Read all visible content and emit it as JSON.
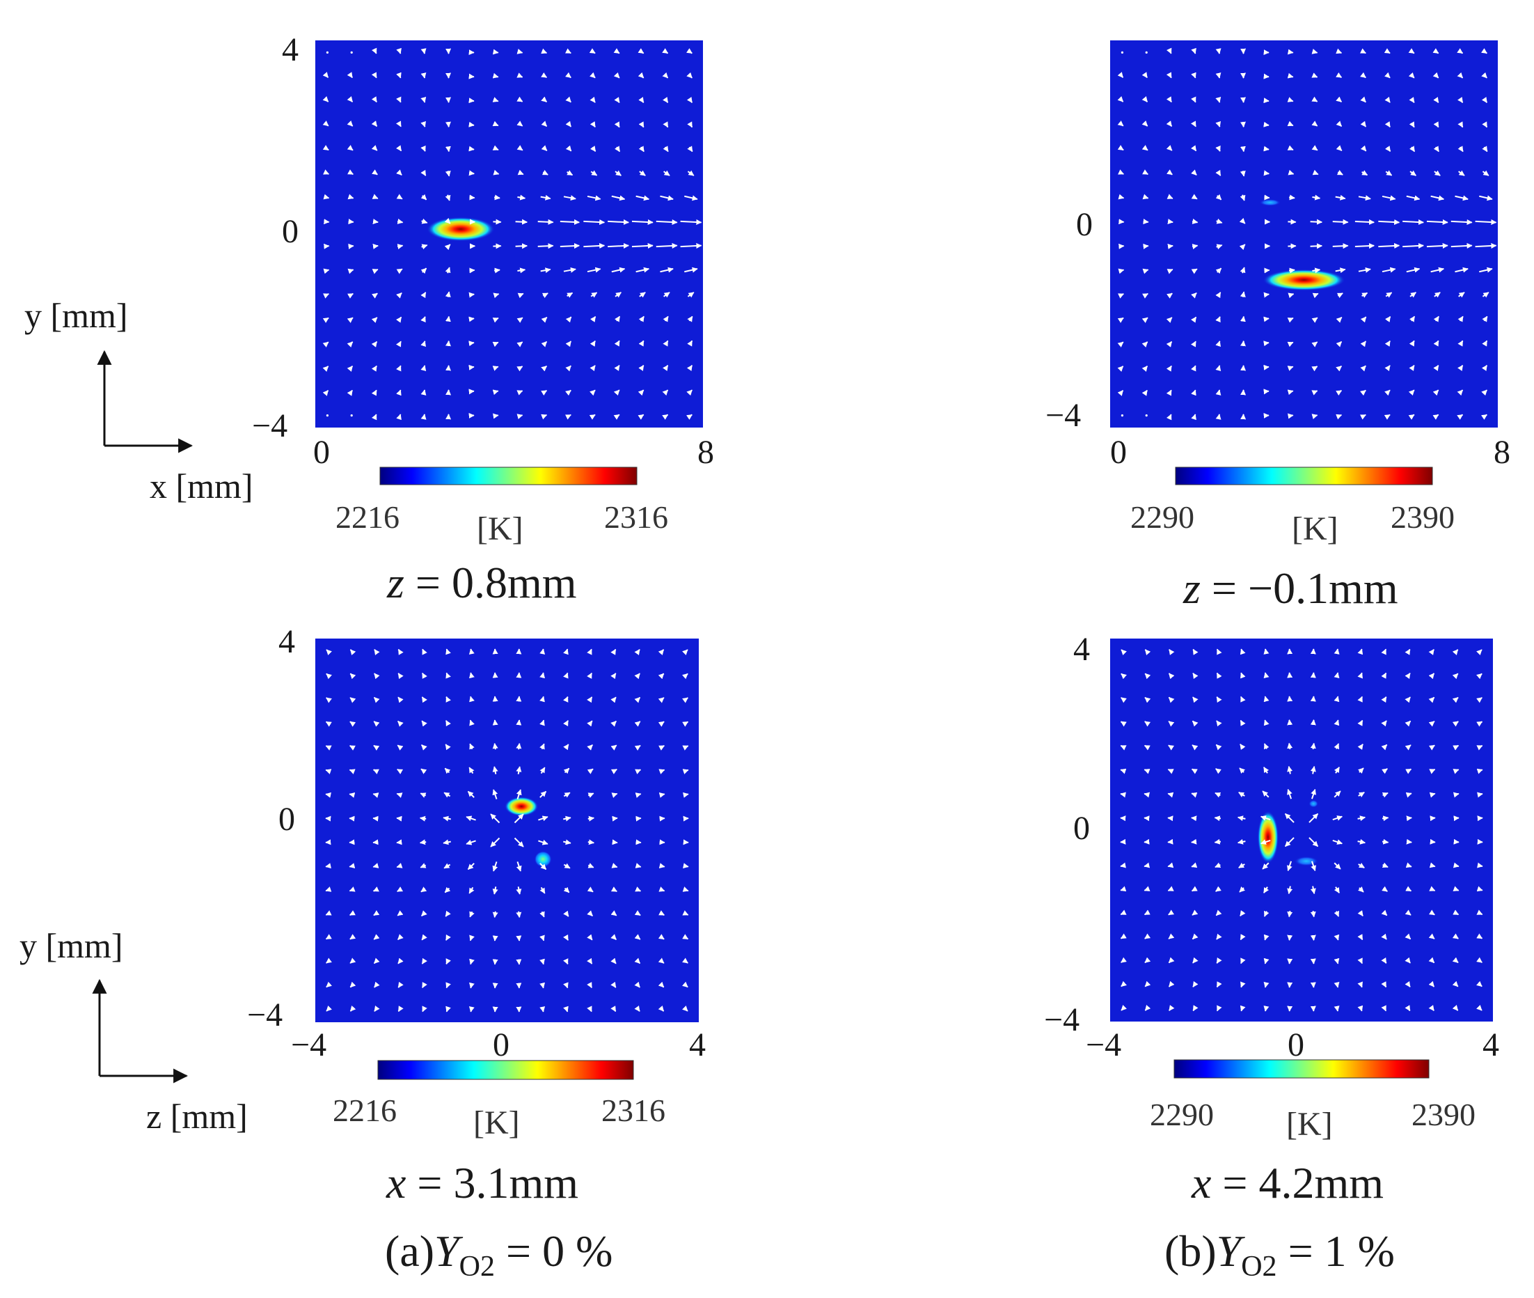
{
  "figure_caption": {
    "a": {
      "prefix": "(a)",
      "symbol": "Y",
      "subscript": "O2",
      "rest": " = 0 %"
    },
    "b": {
      "prefix": "(b)",
      "symbol": "Y",
      "subscript": "O2",
      "rest": " = 1 %"
    }
  },
  "axis_indicators": {
    "top": {
      "vertical": "y [mm]",
      "horizontal": "x [mm]"
    },
    "bottom": {
      "vertical": "y [mm]",
      "horizontal": "z [mm]"
    }
  },
  "colors": {
    "field_background": "#0f1cd6",
    "arrow": "#ffffff",
    "axis": "#111111"
  },
  "chart_data": [
    {
      "id": "panel-a-top",
      "type": "heatmap",
      "plane": "x-y",
      "title": "z = 0.8mm",
      "title_parts": {
        "var": "z",
        "rest": " = 0.8mm"
      },
      "xlabel": "x [mm]",
      "ylabel": "y [mm]",
      "xlim": [
        0,
        8
      ],
      "ylim": [
        -4,
        4
      ],
      "xticks": [
        "0",
        "8"
      ],
      "yticks": [
        "4",
        "0",
        "−4"
      ],
      "colorbar": {
        "min": 2216,
        "max": 2316,
        "min_label": "2216",
        "max_label": "2316",
        "unit": "[K]",
        "colormap": "jet"
      },
      "hot_spots": [
        {
          "center": [
            3.0,
            0.1
          ],
          "radius": [
            0.7,
            0.25
          ],
          "peak_fraction": 1.0
        }
      ],
      "flow_field": {
        "pattern": "jet",
        "source": [
          3.0,
          0.0
        ],
        "direction": "+x",
        "grid": [
          16,
          16
        ]
      }
    },
    {
      "id": "panel-b-top",
      "type": "heatmap",
      "plane": "x-y",
      "title": "z = −0.1mm",
      "title_parts": {
        "var": "z",
        "rest": " = −0.1mm"
      },
      "xlabel": "x [mm]",
      "ylabel": "y [mm]",
      "xlim": [
        0,
        8
      ],
      "ylim": [
        -4,
        4
      ],
      "xticks": [
        "0",
        "8"
      ],
      "yticks": [
        "0",
        "−4"
      ],
      "colorbar": {
        "min": 2290,
        "max": 2390,
        "min_label": "2290",
        "max_label": "2390",
        "unit": "[K]",
        "colormap": "jet"
      },
      "hot_spots": [
        {
          "center": [
            4.0,
            -0.95
          ],
          "radius": [
            0.85,
            0.22
          ],
          "peak_fraction": 1.0
        },
        {
          "center": [
            3.3,
            0.65
          ],
          "radius": [
            0.22,
            0.07
          ],
          "peak_fraction": 0.3
        }
      ],
      "flow_field": {
        "pattern": "jet",
        "source": [
          3.0,
          0.0
        ],
        "direction": "+x",
        "grid": [
          16,
          16
        ]
      }
    },
    {
      "id": "panel-a-bottom",
      "type": "heatmap",
      "plane": "z-y",
      "title": "x = 3.1mm",
      "title_parts": {
        "var": "x",
        "rest": " = 3.1mm"
      },
      "xlabel": "z [mm]",
      "ylabel": "y [mm]",
      "xlim": [
        -4,
        4
      ],
      "ylim": [
        -4,
        4
      ],
      "xticks": [
        "−4",
        "0",
        "4"
      ],
      "yticks": [
        "4",
        "0",
        "−4"
      ],
      "colorbar": {
        "min": 2216,
        "max": 2316,
        "min_label": "2216",
        "max_label": "2316",
        "unit": "[K]",
        "colormap": "jet"
      },
      "hot_spots": [
        {
          "center": [
            0.3,
            0.5
          ],
          "radius": [
            0.35,
            0.2
          ],
          "peak_fraction": 0.95
        },
        {
          "center": [
            0.75,
            -0.6
          ],
          "radius": [
            0.18,
            0.17
          ],
          "peak_fraction": 0.4
        }
      ],
      "flow_field": {
        "pattern": "radial",
        "source": [
          0.0,
          0.0
        ],
        "direction": "outward",
        "grid": [
          16,
          16
        ]
      }
    },
    {
      "id": "panel-b-bottom",
      "type": "heatmap",
      "plane": "z-y",
      "title": "x = 4.2mm",
      "title_parts": {
        "var": "x",
        "rest": " = 4.2mm"
      },
      "xlabel": "z [mm]",
      "ylabel": "y [mm]",
      "xlim": [
        -4,
        4
      ],
      "ylim": [
        -4,
        4
      ],
      "xticks": [
        "−4",
        "0",
        "4"
      ],
      "yticks": [
        "4",
        "0",
        "−4"
      ],
      "colorbar": {
        "min": 2290,
        "max": 2390,
        "min_label": "2290",
        "max_label": "2390",
        "unit": "[K]",
        "colormap": "jet"
      },
      "hot_spots": [
        {
          "center": [
            -0.7,
            -0.15
          ],
          "radius": [
            0.22,
            0.55
          ],
          "peak_fraction": 1.0
        },
        {
          "center": [
            0.1,
            -0.65
          ],
          "radius": [
            0.25,
            0.1
          ],
          "peak_fraction": 0.3
        },
        {
          "center": [
            0.25,
            0.55
          ],
          "radius": [
            0.1,
            0.08
          ],
          "peak_fraction": 0.25
        }
      ],
      "flow_field": {
        "pattern": "radial",
        "source": [
          0.0,
          0.0
        ],
        "direction": "outward",
        "grid": [
          16,
          16
        ]
      }
    }
  ]
}
